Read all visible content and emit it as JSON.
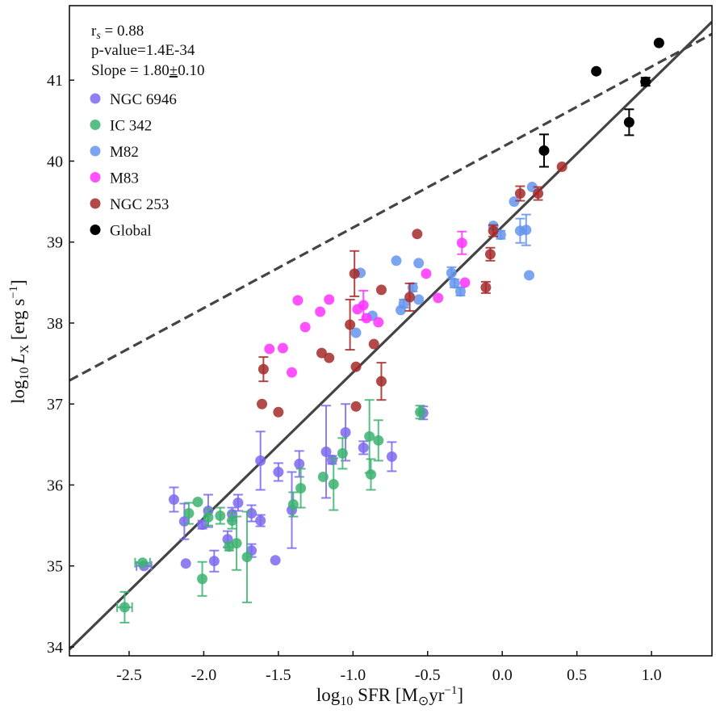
{
  "chart_data": {
    "type": "scatter",
    "title": "",
    "xlabel": "log10 SFR [M⊙ yr−1]",
    "xlabel_parts": {
      "pre": "log",
      "sub": "10",
      "main": " SFR [M",
      "odot": "⊙",
      "unit": "yr",
      "sup": "−1",
      "post": "]"
    },
    "ylabel": "log10 L_X [erg s−1]",
    "ylabel_parts": {
      "pre": "log",
      "sub": "10",
      "L": "L",
      "Lsub": "X",
      "unit": " [erg s",
      "sup": "−1",
      "post": "]"
    },
    "xlim": [
      -2.9,
      1.405
    ],
    "ylim": [
      33.89,
      41.92
    ],
    "xticks": [
      -2.5,
      -2.0,
      -1.5,
      -1.0,
      -0.5,
      0.0,
      0.5,
      1.0
    ],
    "xtick_labels": [
      "-2.5",
      "-2.0",
      "-1.5",
      "-1.0",
      "-0.5",
      "0.0",
      "0.5",
      "1.0"
    ],
    "yticks": [
      34,
      35,
      36,
      37,
      38,
      39,
      40,
      41
    ],
    "ytick_labels": [
      "34",
      "35",
      "36",
      "37",
      "38",
      "39",
      "40",
      "41"
    ],
    "grid": false,
    "legend_position": "top-left",
    "annotations": {
      "rs": "r",
      "rs_sub": "s",
      "rs_value": " = 0.88",
      "pvalue": "p-value=1.4E-34",
      "slope_pre": "Slope = 1.80",
      "slope_pm": "±",
      "slope_post": "0.10"
    },
    "fit_lines": [
      {
        "name": "best-fit",
        "style": "solid",
        "color": "#444444",
        "x": [
          -2.9,
          1.405
        ],
        "y": [
          33.97,
          41.72
        ]
      },
      {
        "name": "reference",
        "style": "dashed",
        "color": "#444444",
        "x": [
          -2.9,
          1.405
        ],
        "y": [
          37.29,
          41.57
        ]
      }
    ],
    "series": [
      {
        "name": "NGC 6946",
        "color": "#7b68ee",
        "points": [
          {
            "x": -2.4,
            "y": 35.0,
            "yerr": 0.03,
            "xerr": 0.05
          },
          {
            "x": -2.12,
            "y": 35.03,
            "yerr": 0.03
          },
          {
            "x": -1.93,
            "y": 35.06,
            "yerr": 0.13
          },
          {
            "x": -2.2,
            "y": 35.82,
            "yerr": 0.15
          },
          {
            "x": -2.13,
            "y": 35.55,
            "yerr": 0.22
          },
          {
            "x": -2.01,
            "y": 35.51,
            "yerr": 0.05
          },
          {
            "x": -1.97,
            "y": 35.68,
            "yerr": 0.2
          },
          {
            "x": -1.77,
            "y": 35.78,
            "yerr": 0.1
          },
          {
            "x": -1.68,
            "y": 35.65,
            "yerr": 0.1
          },
          {
            "x": -1.62,
            "y": 35.56,
            "yerr": 0.07
          },
          {
            "x": -1.81,
            "y": 35.64,
            "yerr": 0.08
          },
          {
            "x": -1.84,
            "y": 35.33,
            "yerr": 0.1
          },
          {
            "x": -1.68,
            "y": 35.19,
            "yerr": 0.08
          },
          {
            "x": -1.52,
            "y": 35.07,
            "yerr": 0.03
          },
          {
            "x": -1.62,
            "y": 36.3,
            "yerr": 0.36
          },
          {
            "x": -1.5,
            "y": 36.16,
            "yerr": 0.11
          },
          {
            "x": -1.36,
            "y": 36.26,
            "yerr": 0.16
          },
          {
            "x": -1.41,
            "y": 35.69,
            "yerr": 0.47
          },
          {
            "x": -1.18,
            "y": 36.41,
            "yerr": 0.57
          },
          {
            "x": -1.14,
            "y": 36.31,
            "yerr": 0.05
          },
          {
            "x": -1.05,
            "y": 36.65,
            "yerr": 0.35
          },
          {
            "x": -0.93,
            "y": 36.46,
            "yerr": 0.08
          },
          {
            "x": -0.74,
            "y": 36.35,
            "yerr": 0.18
          },
          {
            "x": -0.53,
            "y": 36.89,
            "yerr": 0.08
          }
        ]
      },
      {
        "name": "IC 342",
        "color": "#3cb371",
        "points": [
          {
            "x": -2.53,
            "y": 34.49,
            "yerr": 0.19,
            "xerr": 0.05
          },
          {
            "x": -2.41,
            "y": 35.04,
            "yerr": 0.03,
            "xerr": 0.05
          },
          {
            "x": -2.01,
            "y": 34.84,
            "yerr": 0.21
          },
          {
            "x": -2.04,
            "y": 35.79,
            "yerr": 0.03
          },
          {
            "x": -2.1,
            "y": 35.65,
            "yerr": 0.13
          },
          {
            "x": -1.97,
            "y": 35.6,
            "yerr": 0.1
          },
          {
            "x": -1.89,
            "y": 35.62,
            "yerr": 0.1
          },
          {
            "x": -1.81,
            "y": 35.56,
            "yerr": 0.1
          },
          {
            "x": -1.83,
            "y": 35.24,
            "yerr": 0.05
          },
          {
            "x": -1.78,
            "y": 35.28,
            "yerr": 0.33
          },
          {
            "x": -1.71,
            "y": 35.11,
            "yerr": 0.56
          },
          {
            "x": -1.35,
            "y": 35.96,
            "yerr": 0.24
          },
          {
            "x": -1.4,
            "y": 35.76,
            "yerr": 0.15
          },
          {
            "x": -1.2,
            "y": 36.1,
            "yerr": 0.03
          },
          {
            "x": -1.13,
            "y": 36.01,
            "yerr": 0.32
          },
          {
            "x": -1.07,
            "y": 36.39,
            "yerr": 0.19
          },
          {
            "x": -0.89,
            "y": 36.6,
            "yerr": 0.45
          },
          {
            "x": -0.83,
            "y": 36.55,
            "yerr": 0.25
          },
          {
            "x": -0.88,
            "y": 36.13,
            "yerr": 0.19
          },
          {
            "x": -0.55,
            "y": 36.9,
            "yerr": 0.08
          }
        ]
      },
      {
        "name": "M82",
        "color": "#6495ed",
        "points": [
          {
            "x": -0.95,
            "y": 38.62,
            "yerr": 0.03
          },
          {
            "x": -0.71,
            "y": 38.77,
            "yerr": 0.03
          },
          {
            "x": -0.56,
            "y": 38.74,
            "yerr": 0.03
          },
          {
            "x": -0.6,
            "y": 38.44,
            "yerr": 0.05
          },
          {
            "x": -0.56,
            "y": 38.29,
            "yerr": 0.03
          },
          {
            "x": -0.66,
            "y": 38.24,
            "yerr": 0.05
          },
          {
            "x": -0.68,
            "y": 38.16,
            "yerr": 0.03
          },
          {
            "x": -0.87,
            "y": 38.09,
            "yerr": 0.03
          },
          {
            "x": -0.98,
            "y": 37.88,
            "yerr": 0.03
          },
          {
            "x": -0.34,
            "y": 38.62,
            "yerr": 0.07
          },
          {
            "x": -0.32,
            "y": 38.49,
            "yerr": 0.05
          },
          {
            "x": -0.28,
            "y": 38.39,
            "yerr": 0.05
          },
          {
            "x": -0.06,
            "y": 39.2,
            "yerr": 0.03
          },
          {
            "x": -0.01,
            "y": 39.09,
            "yerr": 0.05
          },
          {
            "x": 0.12,
            "y": 39.14,
            "yerr": 0.15
          },
          {
            "x": 0.16,
            "y": 39.15,
            "yerr": 0.19
          },
          {
            "x": 0.18,
            "y": 38.59,
            "yerr": 0.03
          },
          {
            "x": 0.08,
            "y": 39.5,
            "yerr": 0.03
          },
          {
            "x": 0.2,
            "y": 39.68,
            "yerr": 0.03
          }
        ]
      },
      {
        "name": "M83",
        "color": "#ff33ff",
        "points": [
          {
            "x": -0.51,
            "y": 38.61,
            "yerr": 0.03
          },
          {
            "x": -0.43,
            "y": 38.31,
            "yerr": 0.03
          },
          {
            "x": -0.27,
            "y": 38.99,
            "yerr": 0.14
          },
          {
            "x": -0.25,
            "y": 38.5,
            "yerr": 0.03
          },
          {
            "x": -1.37,
            "y": 38.28,
            "yerr": 0.03
          },
          {
            "x": -1.16,
            "y": 38.29,
            "yerr": 0.03
          },
          {
            "x": -1.22,
            "y": 38.14,
            "yerr": 0.03
          },
          {
            "x": -0.93,
            "y": 38.22,
            "yerr": 0.18
          },
          {
            "x": -0.97,
            "y": 38.17,
            "yerr": 0.03
          },
          {
            "x": -1.32,
            "y": 37.95,
            "yerr": 0.03
          },
          {
            "x": -0.91,
            "y": 38.06,
            "yerr": 0.03
          },
          {
            "x": -0.83,
            "y": 38.01,
            "yerr": 0.03
          },
          {
            "x": -1.56,
            "y": 37.68,
            "yerr": 0.03
          },
          {
            "x": -1.47,
            "y": 37.69,
            "yerr": 0.03
          },
          {
            "x": -1.41,
            "y": 37.39,
            "yerr": 0.03
          }
        ]
      },
      {
        "name": "NGC 253",
        "color": "#a52a2a",
        "points": [
          {
            "x": -0.57,
            "y": 39.1,
            "yerr": 0.03
          },
          {
            "x": -0.99,
            "y": 38.61,
            "yerr": 0.28
          },
          {
            "x": -0.81,
            "y": 38.41,
            "yerr": 0.03
          },
          {
            "x": -0.62,
            "y": 38.32,
            "yerr": 0.17
          },
          {
            "x": -1.02,
            "y": 37.98,
            "yerr": 0.31
          },
          {
            "x": -0.86,
            "y": 37.74,
            "yerr": 0.03
          },
          {
            "x": -1.21,
            "y": 37.63,
            "yerr": 0.03
          },
          {
            "x": -1.16,
            "y": 37.57,
            "yerr": 0.03
          },
          {
            "x": -0.98,
            "y": 37.46,
            "yerr": 0.03
          },
          {
            "x": -1.6,
            "y": 37.43,
            "yerr": 0.15
          },
          {
            "x": -0.81,
            "y": 37.28,
            "yerr": 0.23
          },
          {
            "x": -1.61,
            "y": 37.0,
            "yerr": 0.03
          },
          {
            "x": -1.5,
            "y": 36.9,
            "yerr": 0.03
          },
          {
            "x": -0.98,
            "y": 36.97,
            "yerr": 0.03
          },
          {
            "x": -0.06,
            "y": 39.14,
            "yerr": 0.07
          },
          {
            "x": -0.08,
            "y": 38.85,
            "yerr": 0.08
          },
          {
            "x": -0.11,
            "y": 38.44,
            "yerr": 0.07
          },
          {
            "x": 0.12,
            "y": 39.6,
            "yerr": 0.09
          },
          {
            "x": 0.24,
            "y": 39.6,
            "yerr": 0.08
          },
          {
            "x": 0.4,
            "y": 39.93,
            "yerr": 0.03
          }
        ]
      },
      {
        "name": "Global",
        "color": "#000000",
        "points": [
          {
            "x": 0.63,
            "y": 41.11,
            "yerr": 0.0
          },
          {
            "x": 1.05,
            "y": 41.46,
            "yerr": 0.0
          },
          {
            "x": 0.96,
            "y": 40.98,
            "yerr": 0.05
          },
          {
            "x": 0.85,
            "y": 40.48,
            "yerr": 0.16
          },
          {
            "x": 0.28,
            "y": 40.13,
            "yerr": 0.2
          }
        ]
      }
    ]
  }
}
